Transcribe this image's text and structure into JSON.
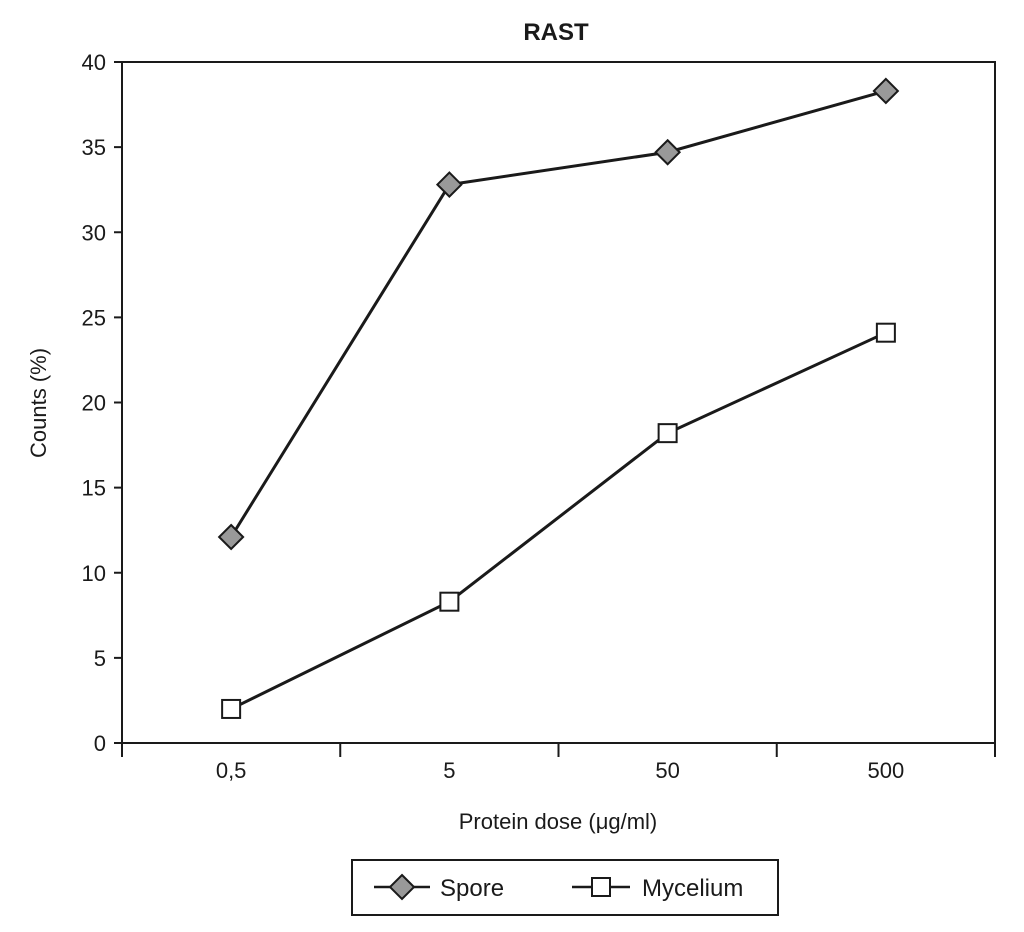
{
  "chart_data": {
    "type": "line",
    "title": "RAST",
    "xlabel": "Protein dose (μg/ml)",
    "ylabel": "Counts (%)",
    "categories": [
      "0,5",
      "5",
      "50",
      "500"
    ],
    "ylim": [
      0,
      40
    ],
    "yticks": [
      0,
      5,
      10,
      15,
      20,
      25,
      30,
      35,
      40
    ],
    "ytick_labels": [
      "0",
      "5",
      "10",
      "15",
      "20",
      "25",
      "30",
      "35",
      "40"
    ],
    "grid": false,
    "legend_position": "bottom",
    "series": [
      {
        "name": "Spore",
        "marker": "diamond",
        "marker_fill": "#999999",
        "values": [
          12.1,
          32.8,
          34.7,
          38.3
        ]
      },
      {
        "name": "Mycelium",
        "marker": "square",
        "marker_fill": "#ffffff",
        "values": [
          2.0,
          8.3,
          18.2,
          24.1
        ]
      }
    ]
  }
}
